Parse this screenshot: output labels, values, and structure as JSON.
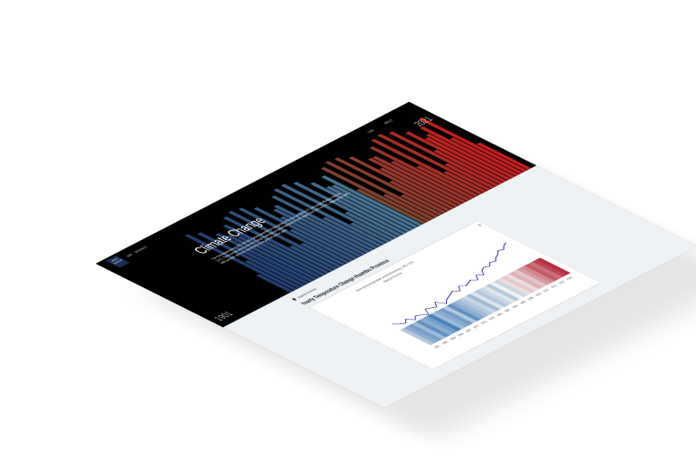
{
  "header": {
    "logo_text": "AFRICA DATA HUB",
    "nav": [
      "MAP",
      "DATASETS"
    ],
    "right_nav": [
      "Login",
      "ABOUT"
    ]
  },
  "hero": {
    "title": "Climate Change",
    "description": "The Paris Agreement of 2015 sets out a global framework to limit global warming to well below 2°C and pursue efforts to limit it to 1.5°C. These climate stripes show the change in average annual temperature for each region, from 1901 to 2021, relative to the 1961–1990 average, with blue representing cooler and red warmer years.",
    "year_start": "1901",
    "year_end": "2021"
  },
  "chart": {
    "location": "Huambo Province",
    "title": "Yearly Temperature Change Huambo Province",
    "subtitle": "Mean yearly temperature, trend and anomaly, 1951–2022",
    "series_label": "Huambo Province",
    "menu_icon": "hamburger-icon"
  },
  "chart_data": {
    "type": "heatmap",
    "title": "Yearly Temperature Change Huambo Province",
    "x": [
      1951,
      1953,
      1955,
      1957,
      1959,
      1961,
      1963,
      1965,
      1967,
      1969,
      1971,
      1973,
      1975,
      1977,
      1979,
      1981,
      1983,
      1985,
      1987,
      1989,
      1991,
      1993,
      1995,
      1997,
      1999,
      2001,
      2003,
      2005,
      2007,
      2009,
      2011,
      2013,
      2015,
      2017,
      2019,
      2021
    ],
    "values": [
      -0.3,
      -0.5,
      -0.6,
      -0.4,
      -0.7,
      -0.5,
      -0.6,
      -0.8,
      -0.4,
      -0.5,
      -0.6,
      -0.3,
      -0.7,
      -0.5,
      -0.4,
      -0.3,
      -0.2,
      -0.4,
      -0.1,
      -0.3,
      -0.2,
      -0.1,
      -0.3,
      0.0,
      -0.2,
      0.1,
      0.2,
      0.1,
      0.3,
      0.2,
      0.4,
      0.5,
      0.7,
      0.6,
      0.8,
      0.9
    ]
  },
  "colors": {
    "cold": "#2166ac",
    "cool": "#9ecae1",
    "warm": "#f4a582",
    "hot": "#b2182b",
    "line": "#3f3aa8"
  }
}
